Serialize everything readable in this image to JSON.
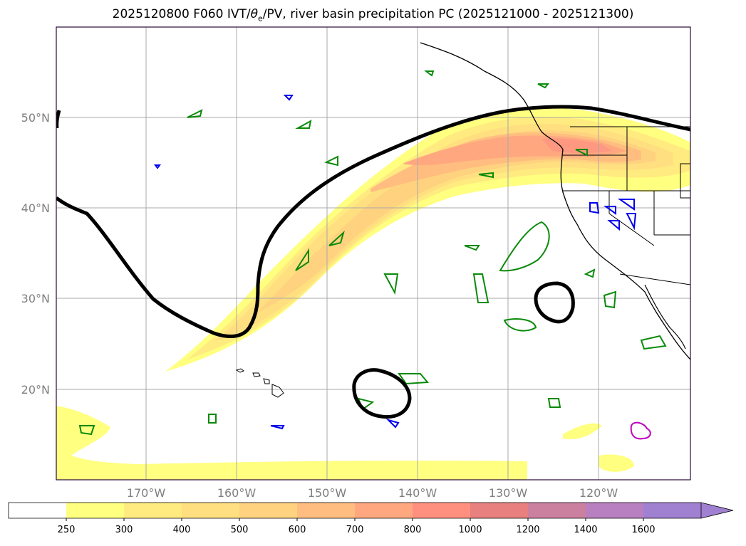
{
  "title": {
    "run": "2025120800 F060 IVT/",
    "theta": "θ",
    "theta_sub": "e",
    "rest": "/PV, river basin precipitation PC (2025121000 - 2025121300)"
  },
  "map": {
    "lat_labels": [
      "50°N",
      "40°N",
      "30°N",
      "20°N"
    ],
    "lon_labels": [
      "170°W",
      "160°W",
      "150°W",
      "140°W",
      "130°W",
      "120°W"
    ]
  },
  "colorbar": {
    "ticks": [
      "250",
      "300",
      "400",
      "500",
      "600",
      "700",
      "800",
      "1000",
      "1200",
      "1400",
      "1600"
    ],
    "colors": [
      "#ffffff",
      "#ffff80",
      "#ffeb80",
      "#ffdf80",
      "#ffd280",
      "#ffbe80",
      "#ffa880",
      "#ff9080",
      "#e88080",
      "#cc80a0",
      "#b880c0",
      "#a080d0"
    ]
  }
}
